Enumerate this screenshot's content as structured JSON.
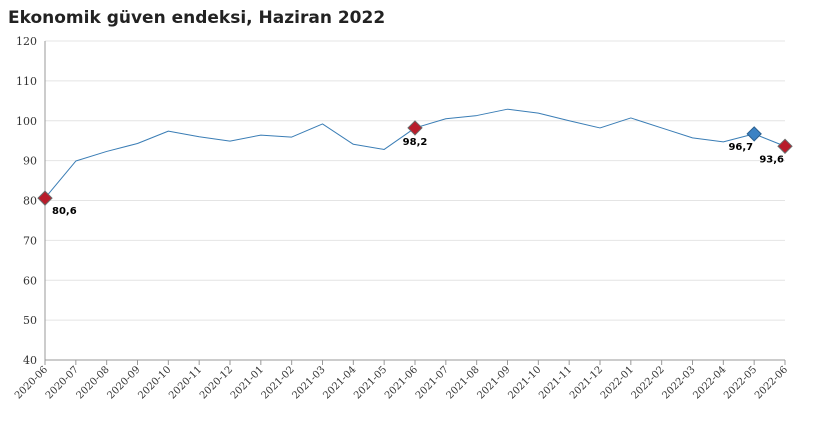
{
  "chart_title": "Ekonomik güven endeksi, Haziran 2022",
  "colors": {
    "line": "#3a7db5",
    "marker_red": "#b81c2a",
    "marker_red_edge": "#6b6b6b",
    "marker_blue": "#3b82c4",
    "marker_blue_edge": "#2a5f8f",
    "grid": "#e4e4e4",
    "axis": "#999999"
  },
  "chart_data": {
    "type": "line",
    "title": "Ekonomik güven endeksi, Haziran 2022",
    "xlabel": "",
    "ylabel": "",
    "ylim": [
      40,
      120
    ],
    "yticks": [
      40,
      50,
      60,
      70,
      80,
      90,
      100,
      110,
      120
    ],
    "grid": true,
    "legend": "none",
    "categories": [
      "2020-06",
      "2020-07",
      "2020-08",
      "2020-09",
      "2020-10",
      "2020-11",
      "2020-12",
      "2021-01",
      "2021-02",
      "2021-03",
      "2021-04",
      "2021-05",
      "2021-06",
      "2021-07",
      "2021-08",
      "2021-09",
      "2021-10",
      "2021-11",
      "2021-12",
      "2022-01",
      "2022-02",
      "2022-03",
      "2022-04",
      "2022-05",
      "2022-06"
    ],
    "series": [
      {
        "values": [
          80.6,
          89.9,
          92.3,
          94.3,
          97.4,
          96.0,
          94.9,
          96.4,
          95.9,
          99.2,
          94.1,
          92.8,
          98.2,
          100.5,
          101.3,
          102.9,
          101.9,
          100.0,
          98.2,
          100.7,
          98.2,
          95.7,
          94.7,
          96.7,
          93.6
        ]
      }
    ],
    "highlighted_points": [
      {
        "category": "2020-06",
        "value": 80.6,
        "label": "80,6",
        "color": "red",
        "label_pos": "below-right"
      },
      {
        "category": "2021-06",
        "value": 98.2,
        "label": "98,2",
        "color": "red",
        "label_pos": "below"
      },
      {
        "category": "2022-05",
        "value": 96.7,
        "label": "96,7",
        "color": "blue",
        "label_pos": "below-left"
      },
      {
        "category": "2022-06",
        "value": 93.6,
        "label": "93,6",
        "color": "red",
        "label_pos": "below-left"
      }
    ]
  }
}
